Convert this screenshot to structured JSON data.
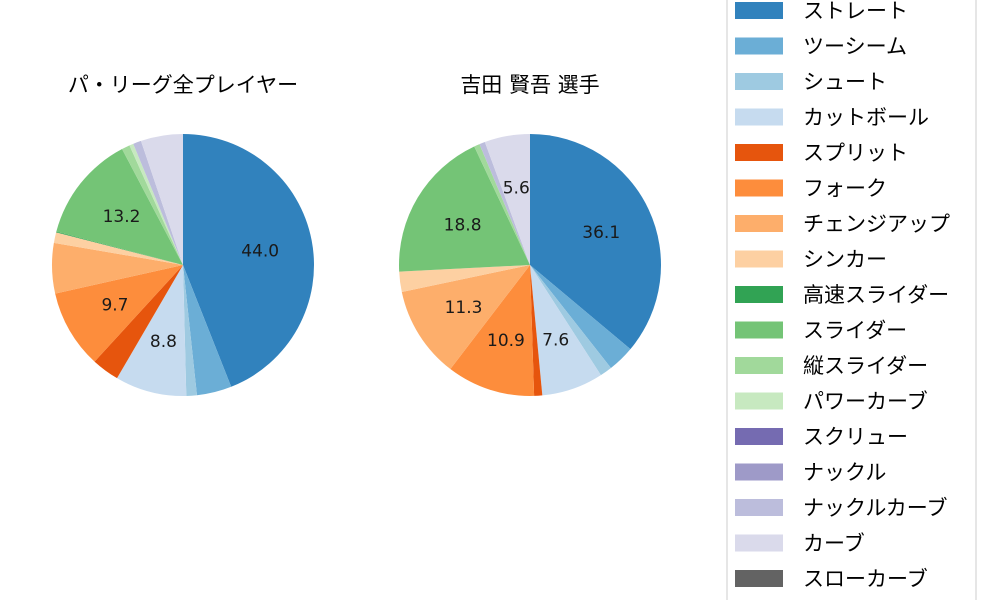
{
  "chart_data": [
    {
      "type": "pie",
      "title": "パ・リーグ全プレイヤー",
      "slices": [
        {
          "label": "ストレート",
          "value": 44.0,
          "shown": "44.0"
        },
        {
          "label": "ツーシーム",
          "value": 4.3,
          "shown": ""
        },
        {
          "label": "シュート",
          "value": 1.3,
          "shown": ""
        },
        {
          "label": "カットボール",
          "value": 8.8,
          "shown": "8.8"
        },
        {
          "label": "スプリット",
          "value": 3.4,
          "shown": ""
        },
        {
          "label": "フォーク",
          "value": 9.7,
          "shown": "9.7"
        },
        {
          "label": "チェンジアップ",
          "value": 6.2,
          "shown": ""
        },
        {
          "label": "シンカー",
          "value": 1.3,
          "shown": ""
        },
        {
          "label": "高速スライダー",
          "value": 0.1,
          "shown": ""
        },
        {
          "label": "スライダー",
          "value": 13.2,
          "shown": "13.2"
        },
        {
          "label": "縦スライダー",
          "value": 1.0,
          "shown": ""
        },
        {
          "label": "パワーカーブ",
          "value": 0.5,
          "shown": ""
        },
        {
          "label": "スクリュー",
          "value": 0.0,
          "shown": ""
        },
        {
          "label": "ナックル",
          "value": 0.0,
          "shown": ""
        },
        {
          "label": "ナックルカーブ",
          "value": 1.0,
          "shown": ""
        },
        {
          "label": "カーブ",
          "value": 5.2,
          "shown": ""
        },
        {
          "label": "スローカーブ",
          "value": 0.0,
          "shown": ""
        }
      ]
    },
    {
      "type": "pie",
      "title": "吉田 賢吾  選手",
      "slices": [
        {
          "label": "ストレート",
          "value": 36.1,
          "shown": "36.1"
        },
        {
          "label": "ツーシーム",
          "value": 3.3,
          "shown": ""
        },
        {
          "label": "シュート",
          "value": 1.5,
          "shown": ""
        },
        {
          "label": "カットボール",
          "value": 7.6,
          "shown": "7.6"
        },
        {
          "label": "スプリット",
          "value": 1.0,
          "shown": ""
        },
        {
          "label": "フォーク",
          "value": 10.9,
          "shown": "10.9"
        },
        {
          "label": "チェンジアップ",
          "value": 11.3,
          "shown": "11.3"
        },
        {
          "label": "シンカー",
          "value": 2.5,
          "shown": ""
        },
        {
          "label": "高速スライダー",
          "value": 0.0,
          "shown": ""
        },
        {
          "label": "スライダー",
          "value": 18.8,
          "shown": "18.8"
        },
        {
          "label": "縦スライダー",
          "value": 0.7,
          "shown": ""
        },
        {
          "label": "パワーカーブ",
          "value": 0.0,
          "shown": ""
        },
        {
          "label": "スクリュー",
          "value": 0.0,
          "shown": ""
        },
        {
          "label": "ナックル",
          "value": 0.0,
          "shown": ""
        },
        {
          "label": "ナックルカーブ",
          "value": 0.7,
          "shown": ""
        },
        {
          "label": "カーブ",
          "value": 5.6,
          "shown": "5.6"
        },
        {
          "label": "スローカーブ",
          "value": 0.0,
          "shown": ""
        }
      ]
    }
  ],
  "legend": {
    "placement": "right",
    "entries": [
      {
        "label": "ストレート",
        "color": "#3182bd"
      },
      {
        "label": "ツーシーム",
        "color": "#6baed6"
      },
      {
        "label": "シュート",
        "color": "#9ecae1"
      },
      {
        "label": "カットボール",
        "color": "#c6dbef"
      },
      {
        "label": "スプリット",
        "color": "#e6550d"
      },
      {
        "label": "フォーク",
        "color": "#fd8d3c"
      },
      {
        "label": "チェンジアップ",
        "color": "#fdae6b"
      },
      {
        "label": "シンカー",
        "color": "#fdd0a2"
      },
      {
        "label": "高速スライダー",
        "color": "#31a354"
      },
      {
        "label": "スライダー",
        "color": "#74c476"
      },
      {
        "label": "縦スライダー",
        "color": "#a1d99b"
      },
      {
        "label": "パワーカーブ",
        "color": "#c7e9c0"
      },
      {
        "label": "スクリュー",
        "color": "#756bb1"
      },
      {
        "label": "ナックル",
        "color": "#9e9ac8"
      },
      {
        "label": "ナックルカーブ",
        "color": "#bcbddc"
      },
      {
        "label": "カーブ",
        "color": "#dadaeb"
      },
      {
        "label": "スローカーブ",
        "color": "#636363"
      }
    ]
  }
}
